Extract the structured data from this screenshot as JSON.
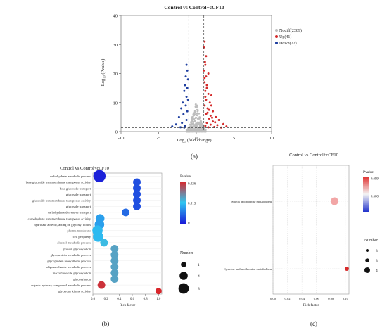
{
  "panels": [
    {
      "type": "scatter",
      "caption": "(a)",
      "title": "Control vs Control+cCF10",
      "xlabel": "Log₂ (fold change)",
      "ylabel": "-Log₁₀ (Pvalue)",
      "xlim": [
        -10,
        10
      ],
      "ylim": [
        0,
        40
      ],
      "xticks": [
        -10,
        -5,
        0,
        5,
        10
      ],
      "yticks": [
        0,
        10,
        20,
        30,
        40
      ],
      "threshold_x": [
        -1,
        1
      ],
      "threshold_y": 1.3,
      "legend": [
        {
          "name": "Nodiff(2389)",
          "color": "#bdbdbd"
        },
        {
          "name": "Up(41)",
          "color": "#d42a2a"
        },
        {
          "name": "Down(22)",
          "color": "#1f3fa0"
        }
      ],
      "series": [
        {
          "name": "Up(41)",
          "color": "#d42a2a",
          "points": [
            [
              1.1,
              31
            ],
            [
              1.0,
              29
            ],
            [
              1.15,
              24
            ],
            [
              1.2,
              23
            ],
            [
              1.0,
              21
            ],
            [
              1.3,
              19
            ],
            [
              1.1,
              17
            ],
            [
              1.4,
              15
            ],
            [
              1.6,
              13
            ],
            [
              1.2,
              12
            ],
            [
              1.8,
              10
            ],
            [
              2.0,
              9
            ],
            [
              1.5,
              8
            ],
            [
              2.2,
              7
            ],
            [
              1.3,
              6
            ],
            [
              2.6,
              5
            ],
            [
              1.7,
              4.5
            ],
            [
              3.0,
              4
            ],
            [
              2.2,
              3.5
            ],
            [
              1.4,
              3
            ],
            [
              3.6,
              2.6
            ],
            [
              1.9,
              2.4
            ],
            [
              2.8,
              2.2
            ],
            [
              1.2,
              2
            ],
            [
              4.0,
              1.8
            ],
            [
              2.4,
              1.6
            ],
            [
              1.6,
              1.5
            ],
            [
              3.3,
              1.4
            ],
            [
              1.1,
              9
            ],
            [
              1.3,
              11
            ],
            [
              1.5,
              6.5
            ],
            [
              1.7,
              7.5
            ],
            [
              1.9,
              5.5
            ],
            [
              2.1,
              4.8
            ],
            [
              2.5,
              3.2
            ],
            [
              1.2,
              14
            ],
            [
              1.4,
              16
            ],
            [
              1.1,
              18.5
            ],
            [
              1.3,
              26
            ],
            [
              1.6,
              20
            ],
            [
              2.0,
              12.5
            ]
          ]
        },
        {
          "name": "Down(22)",
          "color": "#1f3fa0",
          "points": [
            [
              -1.3,
              23
            ],
            [
              -1.2,
              21
            ],
            [
              -1.4,
              19
            ],
            [
              -1.1,
              18
            ],
            [
              -1.5,
              16
            ],
            [
              -1.2,
              15
            ],
            [
              -1.6,
              14
            ],
            [
              -1.3,
              12
            ],
            [
              -1.1,
              11
            ],
            [
              -1.8,
              10
            ],
            [
              -1.4,
              9
            ],
            [
              -2.0,
              8
            ],
            [
              -1.2,
              7
            ],
            [
              -1.7,
              6
            ],
            [
              -2.3,
              5
            ],
            [
              -1.3,
              4
            ],
            [
              -1.9,
              3
            ],
            [
              -2.7,
              2.5
            ],
            [
              -1.5,
              2
            ],
            [
              -3.2,
              1.8
            ],
            [
              -2.1,
              1.5
            ],
            [
              -1.6,
              1.4
            ]
          ]
        }
      ]
    },
    {
      "type": "scatter",
      "caption": "(b)",
      "title": "Control vs Control+cCF10",
      "xlabel": "Rich factor",
      "xticks": [
        "0.0",
        "0.2",
        "0.4",
        "0.6",
        "0.8",
        "1.0"
      ],
      "xlim": [
        0,
        1.05
      ],
      "legend_color_title": "Pvalue",
      "color_ticks": [
        "0.026",
        "0.013",
        "0"
      ],
      "legend_size_title": "Number",
      "size_ticks": [
        "1",
        "4",
        "8"
      ],
      "categories": [
        "carbohydrate metabolic process",
        "beta-glucoside transmembrane transporter activity",
        "beta-glucoside transport",
        "glucoside transport",
        "glucoside transmembrane transporter activity",
        "glycoside transport",
        "carbohydrate derivative transport",
        "carbohydrate transmembrane transporter activity",
        "hydrolase activity, acting on glycosyl bonds",
        "plasma membrane",
        "cell periphery",
        "alcohol metabolic process",
        "protein glycosylation",
        "glycoprotein metabolic process",
        "glycoprotein biosynthetic process",
        "oligosaccharide metabolic process",
        "macromolecule glycosylation",
        "glycosylation",
        "organic hydroxy compound metabolic process",
        "glycerone kinase activity"
      ],
      "rich_factor": [
        0.1,
        0.67,
        0.67,
        0.67,
        0.67,
        0.67,
        0.5,
        0.11,
        0.1,
        0.07,
        0.08,
        0.17,
        0.33,
        0.33,
        0.33,
        0.33,
        0.33,
        0.33,
        0.13,
        1.0
      ],
      "number": [
        8,
        2,
        2,
        2,
        2,
        2,
        2,
        3,
        4,
        5,
        5,
        2,
        2,
        2,
        2,
        2,
        2,
        2,
        2,
        1
      ],
      "pvalue": [
        0.0005,
        0.004,
        0.004,
        0.004,
        0.004,
        0.004,
        0.006,
        0.01,
        0.01,
        0.012,
        0.012,
        0.014,
        0.016,
        0.016,
        0.016,
        0.016,
        0.016,
        0.016,
        0.025,
        0.026
      ]
    },
    {
      "type": "scatter",
      "caption": "(c)",
      "title": "Control vs Control+cCF10",
      "xlabel": "Rich factor",
      "xticks": [
        "0.00",
        "0.02",
        "0.04",
        "0.06",
        "0.08",
        "0.10"
      ],
      "xlim": [
        0,
        0.105
      ],
      "legend_color_title": "Pvalue",
      "color_ticks": [
        "0.699",
        "0.600"
      ],
      "legend_size_title": "Number",
      "size_ticks": [
        "3",
        "3",
        "4"
      ],
      "categories": [
        "Starch and sucrose metabolism",
        "Cysteine and methionine metabolism"
      ],
      "rich_factor": [
        0.085,
        0.102
      ],
      "number": [
        4,
        3
      ],
      "pvalue": [
        0.62,
        0.699
      ]
    }
  ]
}
